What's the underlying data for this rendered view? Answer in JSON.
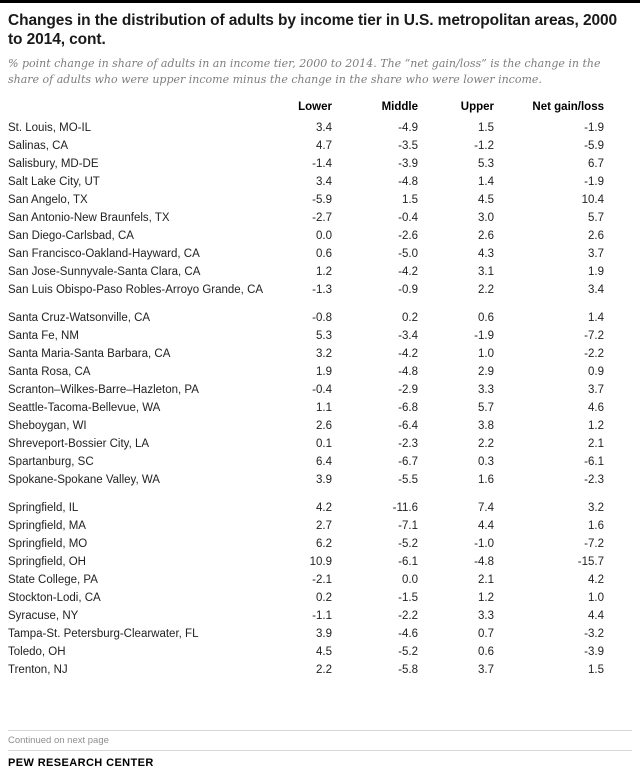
{
  "colors": {
    "top_rule": "#000000",
    "title_text": "#1a1a1a",
    "subtitle_gray": "#7d7d7d",
    "body_text": "#222222",
    "light_rule": "#d8d8d8"
  },
  "chart_data": {
    "type": "table",
    "title": "Changes in the distribution of adults by income tier in U.S. metropolitan areas, 2000 to 2014, cont.",
    "subtitle": "% point change in share of adults in an income tier, 2000 to 2014. The “net gain/loss” is the change in the share of adults who were upper income minus the change in the share who were lower income.",
    "columns": [
      "",
      "Lower",
      "Middle",
      "Upper",
      "Net gain/loss"
    ],
    "groups": [
      {
        "rows": [
          {
            "label": "St. Louis, MO-IL",
            "values": [
              "3.4",
              "-4.9",
              "1.5",
              "-1.9"
            ]
          },
          {
            "label": "Salinas, CA",
            "values": [
              "4.7",
              "-3.5",
              "-1.2",
              "-5.9"
            ]
          },
          {
            "label": "Salisbury, MD-DE",
            "values": [
              "-1.4",
              "-3.9",
              "5.3",
              "6.7"
            ]
          },
          {
            "label": "Salt Lake City, UT",
            "values": [
              "3.4",
              "-4.8",
              "1.4",
              "-1.9"
            ]
          },
          {
            "label": "San Angelo, TX",
            "values": [
              "-5.9",
              "1.5",
              "4.5",
              "10.4"
            ]
          },
          {
            "label": "San Antonio-New Braunfels, TX",
            "values": [
              "-2.7",
              "-0.4",
              "3.0",
              "5.7"
            ]
          },
          {
            "label": "San Diego-Carlsbad, CA",
            "values": [
              "0.0",
              "-2.6",
              "2.6",
              "2.6"
            ]
          },
          {
            "label": "San Francisco-Oakland-Hayward, CA",
            "values": [
              "0.6",
              "-5.0",
              "4.3",
              "3.7"
            ]
          },
          {
            "label": "San Jose-Sunnyvale-Santa Clara, CA",
            "values": [
              "1.2",
              "-4.2",
              "3.1",
              "1.9"
            ]
          },
          {
            "label": "San Luis Obispo-Paso Robles-Arroyo Grande, CA",
            "values": [
              "-1.3",
              "-0.9",
              "2.2",
              "3.4"
            ]
          }
        ]
      },
      {
        "rows": [
          {
            "label": "Santa Cruz-Watsonville, CA",
            "values": [
              "-0.8",
              "0.2",
              "0.6",
              "1.4"
            ]
          },
          {
            "label": "Santa Fe, NM",
            "values": [
              "5.3",
              "-3.4",
              "-1.9",
              "-7.2"
            ]
          },
          {
            "label": "Santa Maria-Santa Barbara, CA",
            "values": [
              "3.2",
              "-4.2",
              "1.0",
              "-2.2"
            ]
          },
          {
            "label": "Santa Rosa, CA",
            "values": [
              "1.9",
              "-4.8",
              "2.9",
              "0.9"
            ]
          },
          {
            "label": "Scranton–Wilkes-Barre–Hazleton, PA",
            "values": [
              "-0.4",
              "-2.9",
              "3.3",
              "3.7"
            ]
          },
          {
            "label": "Seattle-Tacoma-Bellevue, WA",
            "values": [
              "1.1",
              "-6.8",
              "5.7",
              "4.6"
            ]
          },
          {
            "label": "Sheboygan, WI",
            "values": [
              "2.6",
              "-6.4",
              "3.8",
              "1.2"
            ]
          },
          {
            "label": "Shreveport-Bossier City, LA",
            "values": [
              "0.1",
              "-2.3",
              "2.2",
              "2.1"
            ]
          },
          {
            "label": "Spartanburg, SC",
            "values": [
              "6.4",
              "-6.7",
              "0.3",
              "-6.1"
            ]
          },
          {
            "label": "Spokane-Spokane Valley, WA",
            "values": [
              "3.9",
              "-5.5",
              "1.6",
              "-2.3"
            ]
          }
        ]
      },
      {
        "rows": [
          {
            "label": "Springfield, IL",
            "values": [
              "4.2",
              "-11.6",
              "7.4",
              "3.2"
            ]
          },
          {
            "label": "Springfield, MA",
            "values": [
              "2.7",
              "-7.1",
              "4.4",
              "1.6"
            ]
          },
          {
            "label": "Springfield, MO",
            "values": [
              "6.2",
              "-5.2",
              "-1.0",
              "-7.2"
            ]
          },
          {
            "label": "Springfield, OH",
            "values": [
              "10.9",
              "-6.1",
              "-4.8",
              "-15.7"
            ]
          },
          {
            "label": "State College, PA",
            "values": [
              "-2.1",
              "0.0",
              "2.1",
              "4.2"
            ]
          },
          {
            "label": "Stockton-Lodi, CA",
            "values": [
              "0.2",
              "-1.5",
              "1.2",
              "1.0"
            ]
          },
          {
            "label": "Syracuse, NY",
            "values": [
              "-1.1",
              "-2.2",
              "3.3",
              "4.4"
            ]
          },
          {
            "label": "Tampa-St. Petersburg-Clearwater, FL",
            "values": [
              "3.9",
              "-4.6",
              "0.7",
              "-3.2"
            ]
          },
          {
            "label": "Toledo, OH",
            "values": [
              "4.5",
              "-5.2",
              "0.6",
              "-3.9"
            ]
          },
          {
            "label": "Trenton, NJ",
            "values": [
              "2.2",
              "-5.8",
              "3.7",
              "1.5"
            ]
          }
        ]
      }
    ]
  },
  "footer": {
    "continued": "Continued on next page",
    "brand": "PEW RESEARCH CENTER"
  }
}
